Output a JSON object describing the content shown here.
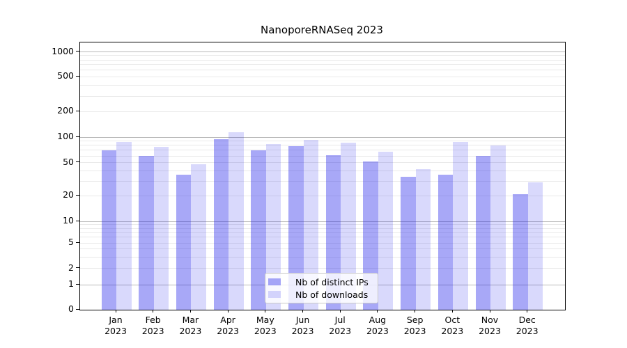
{
  "title": "NanoporeRNASeq 2023",
  "legend": {
    "items": [
      {
        "label": "Nb of distinct IPs",
        "color": "rgba(30,30,235,0.39)"
      },
      {
        "label": "Nb of downloads",
        "color": "rgba(30,30,235,0.17)"
      }
    ]
  },
  "colors": {
    "bar_distinct_ips": "rgba(30,30,235,0.39)",
    "bar_downloads": "rgba(30,30,235,0.17)",
    "grid_major": "#b8b8b8",
    "grid_minor": "#e9e9e9",
    "axis": "#000000",
    "legend_border": "#c8c8c8"
  },
  "chart_data": {
    "type": "bar",
    "title": "NanoporeRNASeq 2023",
    "categories": [
      "Jan 2023",
      "Feb 2023",
      "Mar 2023",
      "Apr 2023",
      "May 2023",
      "Jun 2023",
      "Jul 2023",
      "Aug 2023",
      "Sep 2023",
      "Oct 2023",
      "Nov 2023",
      "Dec 2023"
    ],
    "series": [
      {
        "name": "Nb of distinct IPs",
        "values": [
          70,
          60,
          36,
          95,
          70,
          78,
          61,
          52,
          34,
          36,
          60,
          21
        ]
      },
      {
        "name": "Nb of downloads",
        "values": [
          88,
          77,
          48,
          115,
          83,
          93,
          86,
          67,
          42,
          88,
          80,
          29
        ]
      }
    ],
    "xlabel": "",
    "ylabel": "",
    "yscale": "pseudo-log",
    "yticks": [
      0,
      1,
      2,
      5,
      10,
      20,
      50,
      100,
      200,
      500,
      1000
    ],
    "ylim": [
      0,
      1270
    ],
    "grid": true,
    "legend_position": "lower center"
  }
}
